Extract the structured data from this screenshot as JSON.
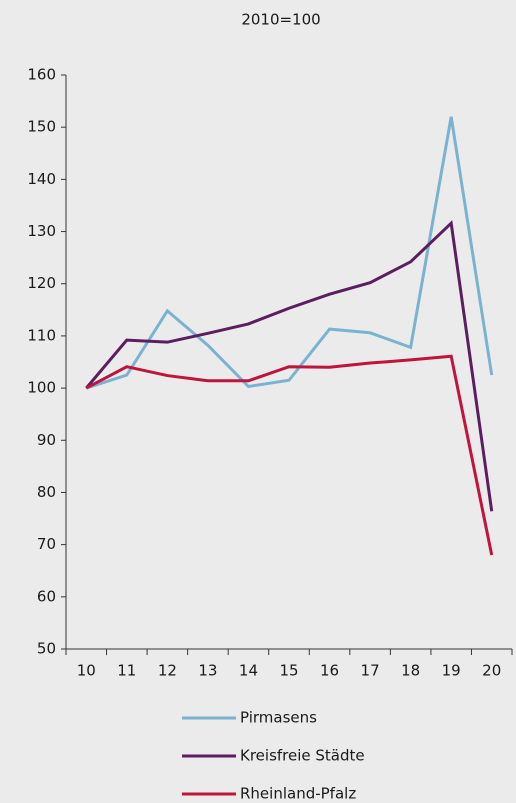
{
  "chart_data": {
    "type": "line",
    "title": "2010=100",
    "categories": [
      "10",
      "11",
      "12",
      "13",
      "14",
      "15",
      "16",
      "17",
      "18",
      "19",
      "20"
    ],
    "series": [
      {
        "name": "Pirmasens",
        "color": "#7ab3d0",
        "values": [
          100,
          102.5,
          114.8,
          108.2,
          100.3,
          101.5,
          111.3,
          110.6,
          107.8,
          152,
          102.5
        ]
      },
      {
        "name": "Kreisfreie Städte",
        "color": "#5b1e5f",
        "values": [
          100,
          109.2,
          108.8,
          110.5,
          112.3,
          115.3,
          118,
          120.2,
          124.2,
          131.6,
          76.4
        ]
      },
      {
        "name": "Rheinland-Pfalz",
        "color": "#c0143c",
        "values": [
          100,
          104.1,
          102.4,
          101.4,
          101.4,
          104.1,
          104,
          104.8,
          105.4,
          106.1,
          68
        ]
      }
    ],
    "ylim": [
      50,
      160
    ],
    "yticks": [
      50,
      60,
      70,
      80,
      90,
      100,
      110,
      120,
      130,
      140,
      150,
      160
    ]
  }
}
